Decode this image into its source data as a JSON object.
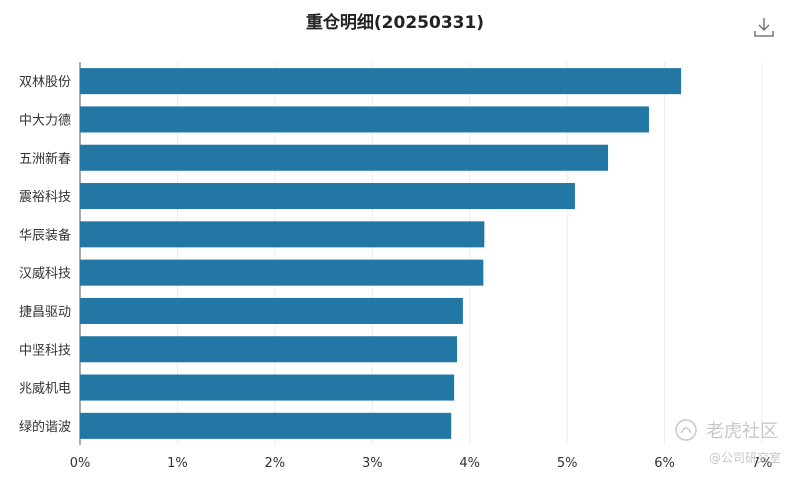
{
  "chart_data": {
    "type": "bar",
    "orientation": "horizontal",
    "title": "重仓明细(20250331)",
    "categories": [
      "双林股份",
      "中大力德",
      "五洲新春",
      "震裕科技",
      "华辰装备",
      "汉威科技",
      "捷昌驱动",
      "中坚科技",
      "兆威机电",
      "绿的谐波"
    ],
    "values": [
      6.17,
      5.84,
      5.42,
      5.08,
      4.15,
      4.14,
      3.93,
      3.87,
      3.84,
      3.81
    ],
    "xlim": [
      0,
      7
    ],
    "x_ticks": [
      "0%",
      "1%",
      "2%",
      "3%",
      "4%",
      "5%",
      "6%",
      "7%"
    ],
    "grid": true,
    "bar_color": "#2277a5"
  },
  "toolbar": {
    "download_icon": "download-icon"
  },
  "watermark": {
    "logo_icon": "tiger-logo-icon",
    "brand": "老虎社区",
    "handle": "@公司研究室"
  }
}
